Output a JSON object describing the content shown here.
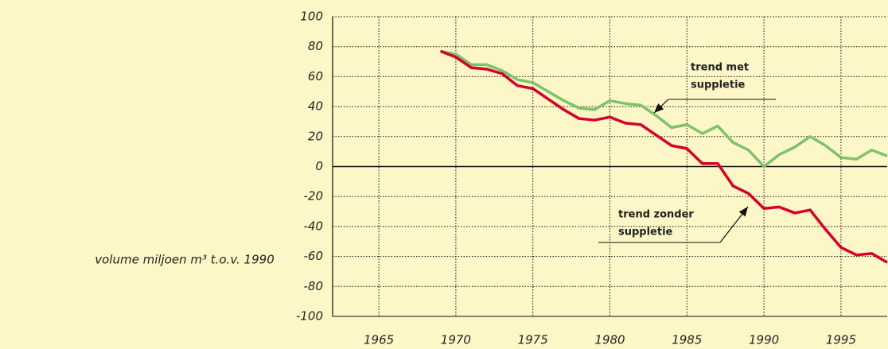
{
  "chart_data": {
    "type": "line",
    "ylabel": "volume miljoen m³ t.o.v. 1990",
    "x": [
      1969,
      1970,
      1971,
      1972,
      1973,
      1974,
      1975,
      1976,
      1977,
      1978,
      1979,
      1980,
      1981,
      1982,
      1983,
      1984,
      1985,
      1986,
      1987,
      1988,
      1989,
      1990,
      1991,
      1992,
      1993,
      1994,
      1995,
      1996,
      1997,
      1998
    ],
    "series": [
      {
        "name": "trend met suppletie",
        "color": "#7dc36b",
        "values": [
          77,
          75,
          68,
          68,
          64,
          58,
          56,
          50,
          44,
          39,
          38,
          44,
          42,
          41,
          34,
          26,
          28,
          22,
          27,
          16,
          11,
          0,
          8,
          13,
          20,
          14,
          6,
          5,
          11,
          7
        ]
      },
      {
        "name": "trend zonder suppletie",
        "color": "#d6002a",
        "values": [
          77,
          73,
          66,
          65,
          62,
          54,
          52,
          45,
          38,
          32,
          31,
          33,
          29,
          28,
          21,
          14,
          12,
          2,
          2,
          -13,
          -18,
          -28,
          -27,
          -31,
          -29,
          -42,
          -54,
          -59,
          -58,
          -64
        ]
      }
    ],
    "annotations": [
      {
        "lines": [
          "trend met",
          "suppletie"
        ]
      },
      {
        "lines": [
          "trend zonder",
          "suppletie"
        ]
      }
    ],
    "xlim": [
      1962,
      1998
    ],
    "xticks": [
      1965,
      1970,
      1975,
      1980,
      1985,
      1990,
      1995
    ],
    "ylim": [
      -100,
      100
    ],
    "yticks": [
      -100,
      -80,
      -60,
      -40,
      -20,
      0,
      20,
      40,
      60,
      80,
      100
    ],
    "grid": true
  }
}
